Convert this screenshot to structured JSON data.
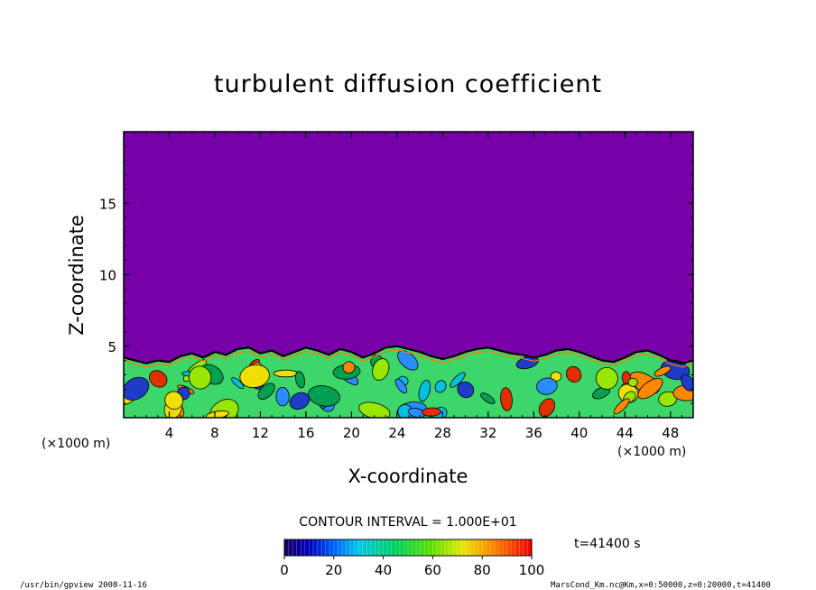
{
  "chart_data": {
    "type": "heatmap",
    "title": "turbulent diffusion coefficient",
    "xlabel": "X-coordinate",
    "ylabel": "Z-coordinate",
    "x_unit": "(×1000 m)",
    "z_unit": "(×1000 m)",
    "xlim": [
      0,
      50
    ],
    "ylim": [
      0,
      20
    ],
    "x_ticks": [
      4,
      8,
      12,
      16,
      20,
      24,
      28,
      32,
      36,
      40,
      44,
      48
    ],
    "y_ticks": [
      5,
      10,
      15
    ],
    "contour_interval_text": "CONTOUR INTERVAL = 1.000E+01",
    "colorbar": {
      "min": 0,
      "max": 100,
      "tick_labels": [
        0,
        20,
        40,
        60,
        80,
        100
      ]
    },
    "time_label": "t=41400 s",
    "boundary_layer_top_km": [
      4.2,
      4.0,
      3.8,
      4.0,
      3.9,
      4.3,
      4.5,
      4.2,
      4.6,
      4.4,
      4.8,
      4.9,
      4.5,
      4.7,
      4.3,
      4.6,
      4.9,
      4.7,
      4.4,
      4.8,
      4.6,
      4.2,
      4.5,
      4.9,
      5.0,
      4.8,
      4.6,
      4.3,
      4.1,
      4.3,
      4.6,
      4.8,
      4.9,
      4.7,
      4.5,
      4.4,
      4.2,
      4.4,
      4.7,
      4.8,
      4.6,
      4.3,
      4.0,
      3.9,
      4.2,
      4.6,
      4.7,
      4.4,
      4.0,
      3.8,
      4.0
    ],
    "colors": {
      "background_field": "#7800a8",
      "contour_line": "#000000"
    }
  },
  "footer": {
    "left": "/usr/bin/gpview  2008-11-16",
    "right": "MarsCond_Km.nc@Km,x=0:50000,z=0:20000,t=41400"
  }
}
